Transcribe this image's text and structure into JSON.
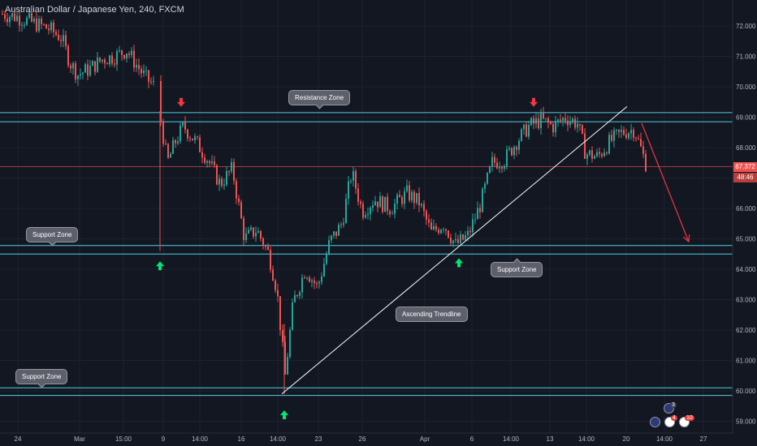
{
  "header": {
    "title": "Australian Dollar / Japanese Yen, 240, FXCM"
  },
  "annotations": {
    "resistance_zone": "Resistance Zone",
    "support_zone_left": "Support Zone",
    "support_zone_right": "Support Zone",
    "support_zone_bottom": "Support Zone",
    "ascending_trendline": "Ascending Trendline"
  },
  "price_badges": {
    "last_price": "67.372",
    "countdown": "48:46"
  },
  "events": {
    "badge_a": "3",
    "badge_b": "4",
    "badge_c": "10"
  },
  "colors": {
    "background": "#131722",
    "up": "#26a69a",
    "down": "#ef5350",
    "zone_line": "#4dd0e1",
    "trendline": "#ffffff",
    "arrow_up": "#00e676",
    "arrow_down": "#f23645"
  },
  "chart_data": {
    "type": "candlestick",
    "symbol": "Australian Dollar / Japanese Yen",
    "interval": "240",
    "source": "FXCM",
    "x_tick_labels": [
      "24",
      "Mar",
      "15:00",
      "9",
      "14:00",
      "16",
      "14:00",
      "23",
      "26",
      "Apr",
      "6",
      "14:00",
      "13",
      "14:00",
      "20",
      "14:00",
      "27"
    ],
    "y_tick_labels": [
      "59.000",
      "60.000",
      "61.000",
      "62.000",
      "63.000",
      "64.000",
      "65.000",
      "66.000",
      "67.000",
      "68.000",
      "69.000",
      "70.000",
      "71.000",
      "72.000"
    ],
    "ylim": [
      58.7,
      72.5
    ],
    "last_price": 67.372,
    "resistance_zone": [
      68.85,
      69.15
    ],
    "support_zones": [
      [
        64.5,
        64.78
      ],
      [
        59.85,
        60.1
      ]
    ],
    "close_path": [
      {
        "t": 0,
        "p": 72.4
      },
      {
        "t": 20,
        "p": 72.3
      },
      {
        "t": 40,
        "p": 72.1
      },
      {
        "t": 60,
        "p": 71.9
      },
      {
        "t": 75,
        "p": 71.6
      },
      {
        "t": 85,
        "p": 70.8
      },
      {
        "t": 95,
        "p": 70.4
      },
      {
        "t": 110,
        "p": 70.6
      },
      {
        "t": 125,
        "p": 70.9
      },
      {
        "t": 140,
        "p": 71.0
      },
      {
        "t": 155,
        "p": 71.2
      },
      {
        "t": 165,
        "p": 70.8
      },
      {
        "t": 178,
        "p": 70.3
      },
      {
        "t": 190,
        "p": 70.0
      },
      {
        "t": 197,
        "p": 68.9
      },
      {
        "t": 205,
        "p": 67.5
      },
      {
        "t": 215,
        "p": 68.2
      },
      {
        "t": 225,
        "p": 68.7
      },
      {
        "t": 240,
        "p": 68.2
      },
      {
        "t": 255,
        "p": 67.6
      },
      {
        "t": 270,
        "p": 66.8
      },
      {
        "t": 285,
        "p": 67.3
      },
      {
        "t": 300,
        "p": 65.0
      },
      {
        "t": 315,
        "p": 65.3
      },
      {
        "t": 330,
        "p": 64.5
      },
      {
        "t": 340,
        "p": 63.3
      },
      {
        "t": 350,
        "p": 60.5
      },
      {
        "t": 360,
        "p": 62.9
      },
      {
        "t": 375,
        "p": 64.0
      },
      {
        "t": 390,
        "p": 63.4
      },
      {
        "t": 405,
        "p": 64.9
      },
      {
        "t": 420,
        "p": 65.5
      },
      {
        "t": 432,
        "p": 67.2
      },
      {
        "t": 445,
        "p": 65.9
      },
      {
        "t": 460,
        "p": 66.3
      },
      {
        "t": 480,
        "p": 66.0
      },
      {
        "t": 500,
        "p": 66.5
      },
      {
        "t": 515,
        "p": 66.2
      },
      {
        "t": 530,
        "p": 65.2
      },
      {
        "t": 545,
        "p": 65.5
      },
      {
        "t": 560,
        "p": 64.8
      },
      {
        "t": 575,
        "p": 65.1
      },
      {
        "t": 590,
        "p": 66.1
      },
      {
        "t": 605,
        "p": 67.5
      },
      {
        "t": 620,
        "p": 67.6
      },
      {
        "t": 635,
        "p": 68.2
      },
      {
        "t": 650,
        "p": 68.7
      },
      {
        "t": 665,
        "p": 68.9
      },
      {
        "t": 680,
        "p": 68.7
      },
      {
        "t": 695,
        "p": 69.0
      },
      {
        "t": 710,
        "p": 68.8
      },
      {
        "t": 720,
        "p": 67.8
      },
      {
        "t": 735,
        "p": 67.7
      },
      {
        "t": 750,
        "p": 68.2
      },
      {
        "t": 765,
        "p": 68.5
      },
      {
        "t": 780,
        "p": 68.6
      },
      {
        "t": 795,
        "p": 67.4
      }
    ],
    "trendline": {
      "from": {
        "t": 347,
        "p": 59.9
      },
      "to": {
        "t": 772,
        "p": 69.35
      }
    },
    "projection_arrow": {
      "from": {
        "t": 790,
        "p": 68.8
      },
      "to": {
        "t": 848,
        "p": 64.9
      }
    },
    "signals": [
      {
        "kind": "down",
        "t": 223,
        "p": 69.5
      },
      {
        "kind": "up",
        "t": 197,
        "p": 64.1
      },
      {
        "kind": "up",
        "t": 350,
        "p": 59.2
      },
      {
        "kind": "up",
        "t": 565,
        "p": 64.2
      },
      {
        "kind": "down",
        "t": 657,
        "p": 69.5
      }
    ]
  }
}
